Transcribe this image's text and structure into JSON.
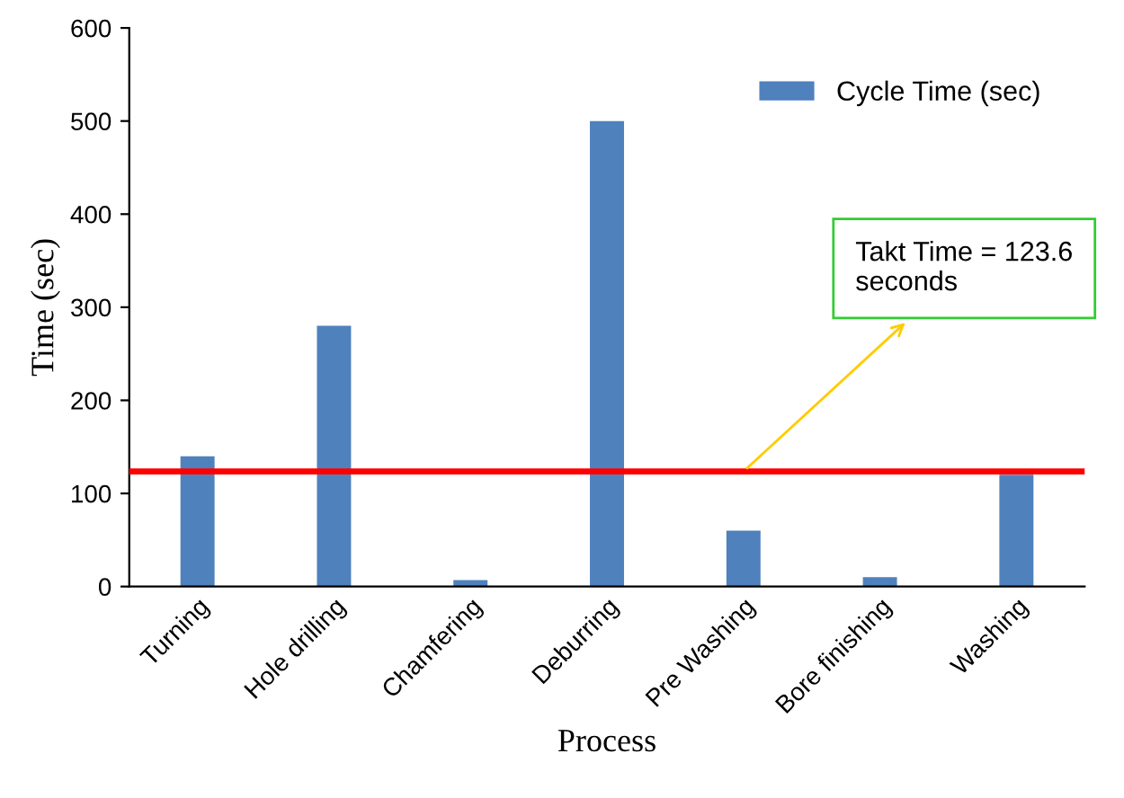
{
  "chart_data": {
    "type": "bar",
    "xlabel": "Process",
    "ylabel": "Time (sec)",
    "categories": [
      "Turning",
      "Hole drilling",
      "Chamfering",
      "Deburring",
      "Pre Washing",
      "Bore finishing",
      "Washing"
    ],
    "series": [
      {
        "name": "Cycle Time (sec)",
        "color": "#4f81bd",
        "values": [
          140,
          280,
          7,
          500,
          60,
          10,
          120
        ]
      }
    ],
    "ylim": [
      0,
      600
    ],
    "yticks": [
      0,
      100,
      200,
      300,
      400,
      500,
      600
    ],
    "ref_lines": [
      {
        "axis": "y",
        "value": 123.6,
        "color": "#ff0000"
      }
    ],
    "annotations": [
      {
        "text": "Takt Time = 123.6 seconds",
        "x": "Pre Washing",
        "y": 123.6
      }
    ],
    "legend": "top right",
    "grid": false
  }
}
